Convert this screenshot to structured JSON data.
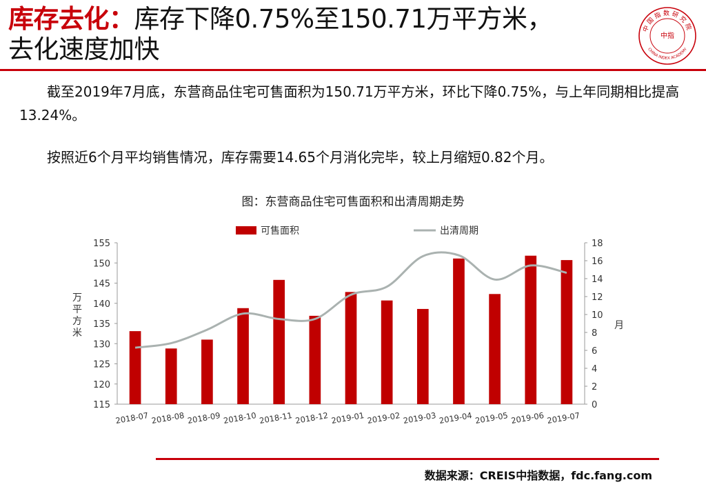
{
  "headline": {
    "emphasis": "库存去化：",
    "line1_rest": "库存下降0.75%至150.71万平方米，",
    "line2": "去化速度加快"
  },
  "logo": {
    "top_text": "中国指数研究院",
    "center_text": "中指",
    "bottom_text": "CHINA INDEX ACADEMY",
    "color": "#c8000a"
  },
  "paragraphs": [
    "截至2019年7月底，东营商品住宅可售面积为150.71万平方米，环比下降0.75%，与上年同期相比提高13.24%。",
    "按照近6个月平均销售情况，库存需要14.65个月消化完毕，较上月缩短0.82个月。"
  ],
  "figure_caption": "图：东营商品住宅可售面积和出清周期走势",
  "source": "数据来源：CREIS中指数据，fdc.fang.com",
  "chart_data": {
    "type": "bar+line",
    "categories": [
      "2018-07",
      "2018-08",
      "2018-09",
      "2018-10",
      "2018-11",
      "2018-12",
      "2019-01",
      "2019-02",
      "2019-03",
      "2019-04",
      "2019-05",
      "2019-06",
      "2019-07"
    ],
    "series": [
      {
        "name": "可售面积",
        "type": "bar",
        "axis": "left",
        "color": "#c00000",
        "values": [
          133.1,
          128.8,
          131.0,
          138.8,
          145.8,
          136.9,
          142.8,
          140.7,
          138.6,
          151.1,
          142.3,
          151.8,
          150.71
        ]
      },
      {
        "name": "出清周期",
        "type": "line",
        "axis": "right",
        "color": "#aab2b0",
        "values": [
          6.3,
          6.8,
          8.3,
          10.1,
          9.5,
          9.5,
          12.2,
          13.1,
          16.5,
          16.6,
          13.9,
          15.47,
          14.65
        ]
      }
    ],
    "left_axis": {
      "label": "万平方米",
      "min": 115,
      "max": 155,
      "ticks": [
        115,
        120,
        125,
        130,
        135,
        140,
        145,
        150,
        155
      ]
    },
    "right_axis": {
      "label": "月",
      "min": 0,
      "max": 18,
      "ticks": [
        0,
        2,
        4,
        6,
        8,
        10,
        12,
        14,
        16,
        18
      ]
    },
    "legend_position": "top-center",
    "grid": false
  }
}
